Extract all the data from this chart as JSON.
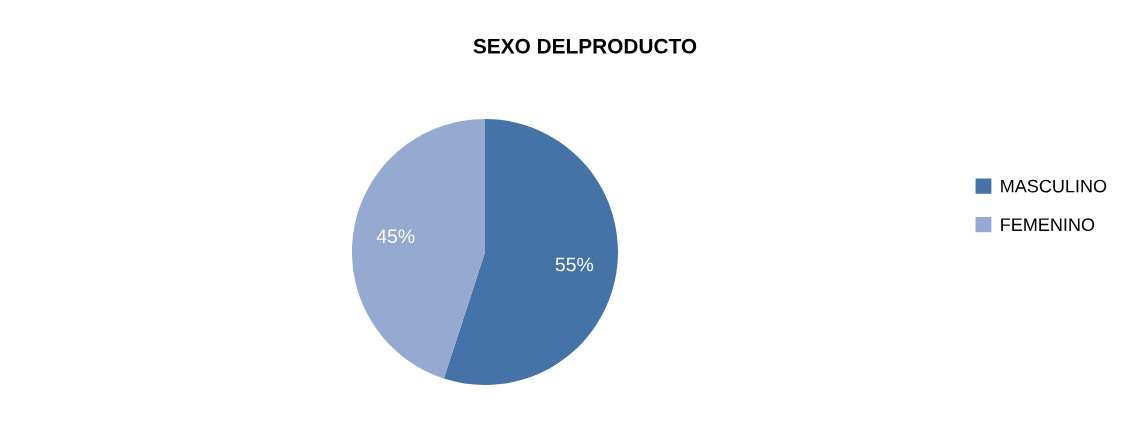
{
  "chart_data": {
    "type": "pie",
    "title": "SEXO DELPRODUCTO",
    "categories": [
      "MASCULINO",
      "FEMENINO"
    ],
    "values": [
      55,
      45
    ],
    "colors": [
      "#4573a7",
      "#95a9d1"
    ],
    "value_labels": [
      "55%",
      "45%"
    ],
    "legend": "right"
  }
}
